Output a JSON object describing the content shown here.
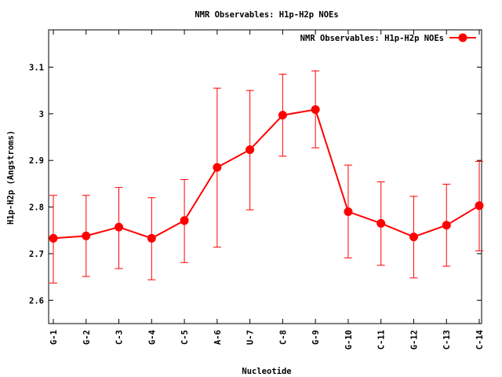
{
  "chart_data": {
    "type": "line",
    "title": "NMR Observables: H1p-H2p NOEs",
    "xlabel": "Nucleotide",
    "ylabel": "H1p-H2p (Angstroms)",
    "categories": [
      "G-1",
      "G-2",
      "C-3",
      "G-4",
      "C-5",
      "A-6",
      "U-7",
      "C-8",
      "G-9",
      "G-10",
      "C-11",
      "G-12",
      "C-13",
      "C-14"
    ],
    "ylim": [
      2.55,
      3.18
    ],
    "yticks": [
      2.6,
      2.7,
      2.8,
      2.9,
      3,
      3.1
    ],
    "ytick_labels": [
      "2.6",
      "2.7",
      "2.8",
      "2.9",
      "3",
      "3.1"
    ],
    "grid": false,
    "legend_position": "top-right",
    "series": [
      {
        "name": "NMR Observables: H1p-H2p NOEs",
        "color": "#ff0000",
        "values": [
          2.733,
          2.738,
          2.757,
          2.733,
          2.771,
          2.885,
          2.923,
          2.997,
          3.009,
          2.79,
          2.765,
          2.736,
          2.761,
          2.803
        ],
        "err_low": [
          2.637,
          2.651,
          2.668,
          2.644,
          2.681,
          2.714,
          2.794,
          2.909,
          2.927,
          2.691,
          2.675,
          2.648,
          2.673,
          2.706
        ],
        "err_high": [
          2.825,
          2.825,
          2.842,
          2.82,
          2.859,
          3.055,
          3.05,
          3.085,
          3.092,
          2.89,
          2.854,
          2.823,
          2.849,
          2.898
        ]
      }
    ]
  }
}
